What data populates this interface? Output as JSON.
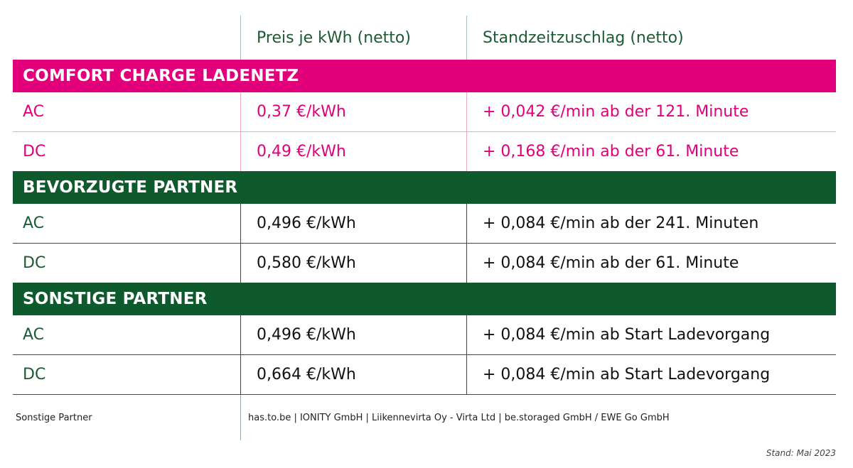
{
  "header": {
    "price_col": "Preis je kWh (netto)",
    "fee_col": "Standzeitzuschlag (netto)"
  },
  "sections": [
    {
      "title": "COMFORT CHARGE LADENETZ",
      "color": "#e2007a",
      "rows": [
        {
          "type": "AC",
          "price": "0,37 €/kWh",
          "fee": "+ 0,042 €/min ab der 121. Minute"
        },
        {
          "type": "DC",
          "price": "0,49 €/kWh",
          "fee": "+ 0,168 €/min ab der 61. Minute"
        }
      ]
    },
    {
      "title": "BEVORZUGTE PARTNER",
      "color": "#0f5a2c",
      "rows": [
        {
          "type": "AC",
          "price": "0,496 €/kWh",
          "fee": "+ 0,084 €/min ab der 241. Minuten"
        },
        {
          "type": "DC",
          "price": "0,580 €/kWh",
          "fee": "+ 0,084 €/min ab der 61. Minute"
        }
      ]
    },
    {
      "title": "SONSTIGE PARTNER",
      "color": "#0f5a2c",
      "rows": [
        {
          "type": "AC",
          "price": "0,496 €/kWh",
          "fee": "+ 0,084 €/min ab Start Ladevorgang"
        },
        {
          "type": "DC",
          "price": "0,664 €/kWh",
          "fee": "+ 0,084 €/min ab Start Ladevorgang"
        }
      ]
    }
  ],
  "footer": {
    "label": "Sonstige Partner",
    "partners": "has.to.be | IONITY GmbH | Liikennevirta Oy - Virta Ltd | be.storaged GmbH / EWE Go GmbH"
  },
  "stand": "Stand:  Mai 2023"
}
